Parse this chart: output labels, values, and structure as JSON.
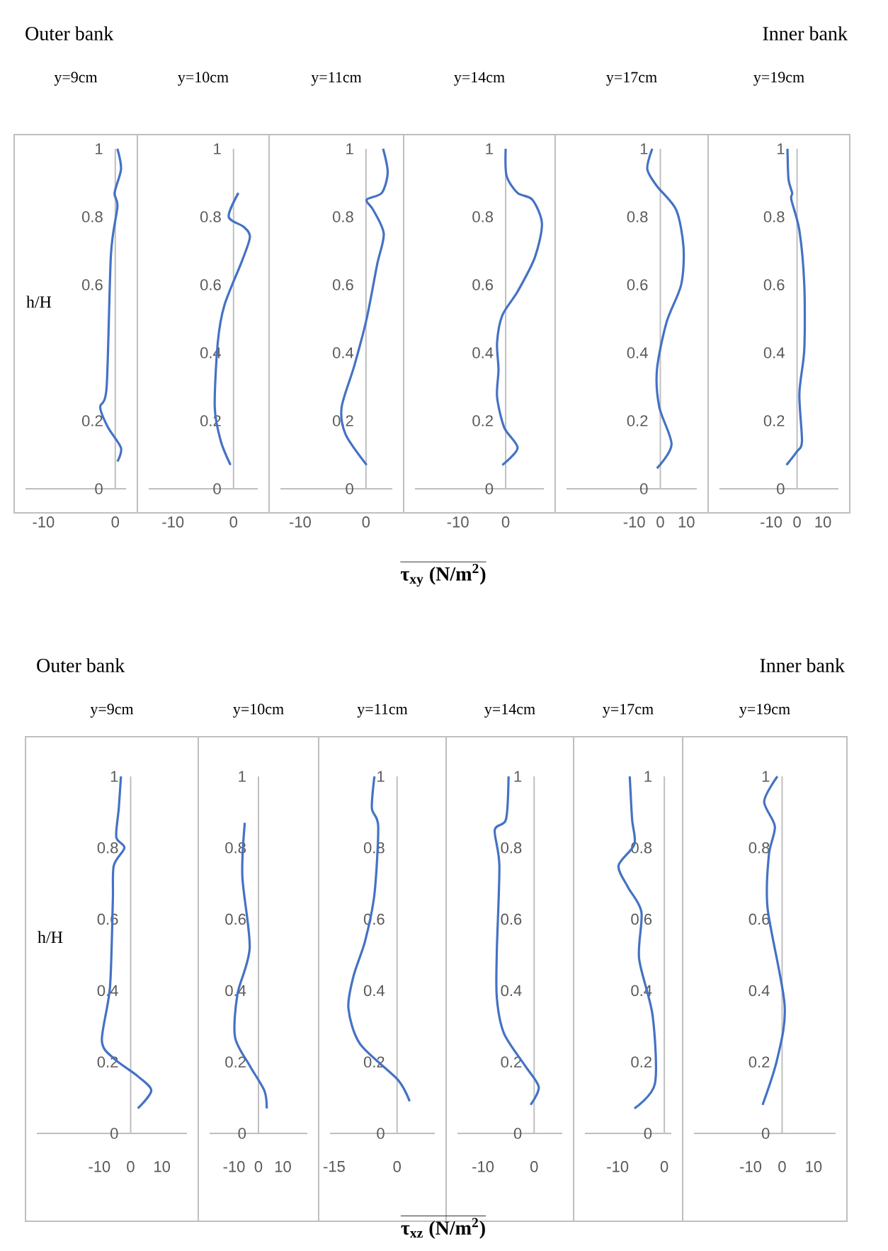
{
  "chart_data": [
    {
      "type": "line",
      "title": "y=9cm",
      "ylabel": "h/H",
      "annotations": [
        "Outer bank"
      ],
      "color": "#4472c4",
      "x": [
        0.3,
        0.8,
        -0.1,
        0.3,
        -0.6,
        -1.2,
        -2.1,
        -1.0,
        0.8,
        0.3
      ],
      "values": [
        1.0,
        0.94,
        0.87,
        0.83,
        0.69,
        0.3,
        0.24,
        0.18,
        0.12,
        0.08
      ],
      "xlim": [
        -12.5,
        1.5
      ],
      "xticks": [
        -10,
        0
      ],
      "ylim": [
        0,
        1
      ],
      "yticks": [
        0,
        0.2,
        0.6,
        0.8,
        1
      ]
    },
    {
      "type": "line",
      "title": "y=10cm",
      "color": "#4472c4",
      "x": [
        0.8,
        -0.8,
        1.7,
        2.7,
        1.4,
        -1.5,
        -2.6,
        -3.1,
        -2.1,
        -0.5
      ],
      "values": [
        0.87,
        0.8,
        0.77,
        0.74,
        0.67,
        0.54,
        0.43,
        0.24,
        0.14,
        0.07
      ],
      "xlim": [
        -14,
        4
      ],
      "xticks": [
        -10,
        0
      ],
      "ylim": [
        0,
        1
      ],
      "yticks": [
        0,
        0.2,
        0.4,
        0.6,
        0.8,
        1
      ]
    },
    {
      "type": "line",
      "title": "y=11cm",
      "color": "#4472c4",
      "x": [
        2.6,
        3.3,
        2.4,
        0.1,
        1.1,
        2.7,
        1.7,
        0.1,
        -1.8,
        -3.7,
        -3.1,
        0.1
      ],
      "values": [
        1.0,
        0.93,
        0.87,
        0.85,
        0.82,
        0.75,
        0.66,
        0.5,
        0.36,
        0.24,
        0.16,
        0.07
      ],
      "xlim": [
        -13,
        4
      ],
      "xticks": [
        -10,
        0
      ],
      "ylim": [
        0,
        1
      ],
      "yticks": [
        0,
        0.2,
        0.4,
        0.6,
        0.8,
        1
      ]
    },
    {
      "type": "line",
      "title": "y=14cm",
      "xlabel": "τ$_{xy}$ (N/m$^{2}$)",
      "color": "#4472c4",
      "x": [
        0,
        0.2,
        2.5,
        5.6,
        7.6,
        6.1,
        2.5,
        -0.7,
        -1.8,
        -1.5,
        -1.8,
        -0.3,
        2.5,
        -0.7
      ],
      "values": [
        1.0,
        0.92,
        0.87,
        0.85,
        0.78,
        0.68,
        0.58,
        0.51,
        0.43,
        0.35,
        0.27,
        0.18,
        0.12,
        0.07
      ],
      "xlim": [
        -19,
        8
      ],
      "xticks": [
        -10,
        0
      ],
      "ylim": [
        0,
        1
      ],
      "yticks": [
        0,
        0.2,
        0.4,
        0.6,
        0.8,
        1
      ]
    },
    {
      "type": "line",
      "title": "y=17cm",
      "color": "#4472c4",
      "x": [
        -3.1,
        -5,
        -1.3,
        6.1,
        8.9,
        8.0,
        2.4,
        -1.3,
        -0.4,
        4.3,
        -1.3
      ],
      "values": [
        1.0,
        0.94,
        0.89,
        0.82,
        0.71,
        0.6,
        0.49,
        0.35,
        0.24,
        0.13,
        0.06
      ],
      "xlim": [
        -36,
        14
      ],
      "xticks": [
        -10,
        0,
        10
      ],
      "ylim": [
        0,
        1
      ],
      "yticks": [
        0,
        0.2,
        0.4,
        0.6,
        0.8,
        1
      ]
    },
    {
      "type": "line",
      "title": "y=19cm",
      "annotations": [
        "Inner bank"
      ],
      "color": "#4472c4",
      "x": [
        -3.7,
        -3.3,
        -1.9,
        -2.2,
        0.9,
        2.8,
        2.8,
        0.9,
        1.9,
        0,
        -4.1
      ],
      "values": [
        1.0,
        0.91,
        0.87,
        0.85,
        0.76,
        0.6,
        0.41,
        0.28,
        0.14,
        0.11,
        0.07
      ],
      "xlim": [
        -30,
        16
      ],
      "xticks": [
        -10,
        0,
        10
      ],
      "ylim": [
        0,
        1
      ],
      "yticks": [
        0,
        0.2,
        0.4,
        0.6,
        0.8,
        1
      ]
    },
    {
      "type": "line",
      "title": "y=9cm",
      "ylabel": "h/H",
      "annotations": [
        "Outer bank"
      ],
      "color": "#4472c4",
      "x": [
        -3.1,
        -3.8,
        -4.6,
        -2,
        -5.4,
        -5.7,
        -6.6,
        -9.2,
        -5.4,
        2.3,
        6.6,
        2.3
      ],
      "values": [
        1.0,
        0.91,
        0.83,
        0.8,
        0.75,
        0.65,
        0.41,
        0.26,
        0.21,
        0.16,
        0.12,
        0.07
      ],
      "xlim": [
        -30,
        18
      ],
      "xticks": [
        -10,
        0,
        10
      ],
      "ylim": [
        0,
        1
      ],
      "yticks": [
        0,
        0.2,
        0.4,
        0.6,
        0.8,
        1
      ]
    },
    {
      "type": "line",
      "title": "y=10cm",
      "color": "#4472c4",
      "x": [
        -5.6,
        -6.6,
        -3.6,
        -8.6,
        -9.6,
        -3.6,
        2.4,
        3.4
      ],
      "values": [
        0.87,
        0.72,
        0.52,
        0.39,
        0.27,
        0.19,
        0.12,
        0.07
      ],
      "xlim": [
        -20,
        20
      ],
      "xticks": [
        -10,
        0,
        10
      ],
      "ylim": [
        0,
        1
      ],
      "yticks": [
        0,
        0.2,
        0.4,
        0.6,
        0.8,
        1
      ]
    },
    {
      "type": "line",
      "title": "y=11cm",
      "color": "#4472c4",
      "x": [
        -5.4,
        -6.0,
        -4.5,
        -5.4,
        -7.6,
        -10.4,
        -11.6,
        -8.8,
        0.2,
        3.0
      ],
      "values": [
        1.0,
        0.91,
        0.86,
        0.67,
        0.54,
        0.44,
        0.35,
        0.25,
        0.15,
        0.09
      ],
      "xlim": [
        -16,
        9
      ],
      "xticks": [
        -15,
        0
      ],
      "ylim": [
        0,
        1
      ],
      "yticks": [
        0,
        0.2,
        0.4,
        0.6,
        0.8,
        1
      ]
    },
    {
      "type": "line",
      "title": "y=14cm",
      "xlabel": "τ$_{xz}$ (N/m$^{2}$)",
      "color": "#4472c4",
      "x": [
        -5,
        -5.5,
        -7.7,
        -6.8,
        -7.3,
        -7.3,
        -5.9,
        -1.8,
        0.9,
        -0.7
      ],
      "values": [
        1.0,
        0.88,
        0.85,
        0.75,
        0.51,
        0.38,
        0.28,
        0.19,
        0.13,
        0.08
      ],
      "xlim": [
        -15,
        5.5
      ],
      "xticks": [
        -10,
        0
      ],
      "ylim": [
        0,
        1
      ],
      "yticks": [
        0,
        0.2,
        0.4,
        0.6,
        0.8,
        1
      ]
    },
    {
      "type": "line",
      "title": "y=17cm",
      "color": "#4472c4",
      "x": [
        -7.4,
        -6.9,
        -6.4,
        -9.8,
        -7.8,
        -4.9,
        -5.4,
        -2.5,
        -2.0,
        -6.4
      ],
      "values": [
        1.0,
        0.88,
        0.81,
        0.75,
        0.69,
        0.62,
        0.49,
        0.33,
        0.14,
        0.07
      ],
      "xlim": [
        -17,
        1.5
      ],
      "xticks": [
        -10,
        0
      ],
      "ylim": [
        0,
        1
      ],
      "yticks": [
        0,
        0.2,
        0.4,
        0.6,
        0.8,
        1
      ]
    },
    {
      "type": "line",
      "title": "y=19cm",
      "annotations": [
        "Inner bank"
      ],
      "color": "#4472c4",
      "x": [
        -1.5,
        -5.7,
        -2.3,
        -4.2,
        -4.6,
        0.8,
        -1.5,
        -6.2
      ],
      "values": [
        1.0,
        0.93,
        0.86,
        0.78,
        0.63,
        0.36,
        0.21,
        0.08
      ],
      "xlim": [
        -28,
        17
      ],
      "xticks": [
        -10,
        0,
        10
      ],
      "ylim": [
        0,
        1
      ],
      "yticks": [
        0,
        0.2,
        0.4,
        0.6,
        0.8,
        1
      ]
    }
  ]
}
